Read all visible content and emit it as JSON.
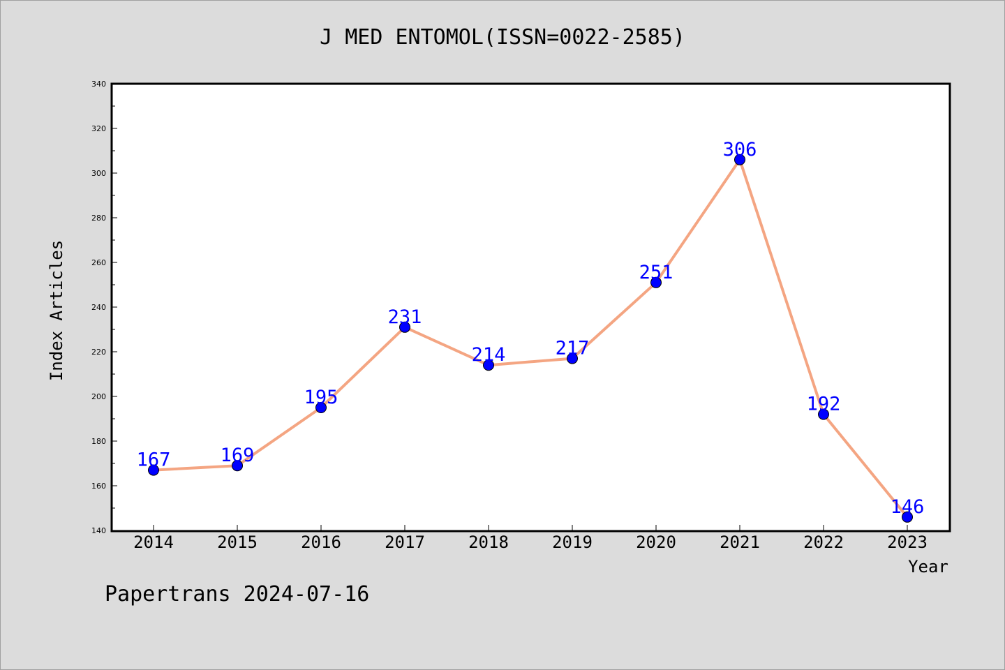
{
  "chart_data": {
    "type": "line",
    "title": "J MED ENTOMOL(ISSN=0022-2585)",
    "xlabel": "Year",
    "ylabel": "Index Articles",
    "footer": "Papertrans 2024-07-16",
    "categories": [
      "2014",
      "2015",
      "2016",
      "2017",
      "2018",
      "2019",
      "2020",
      "2021",
      "2022",
      "2023"
    ],
    "series": [
      {
        "values": [
          167,
          169,
          195,
          231,
          214,
          217,
          251,
          306,
          192,
          146
        ]
      }
    ],
    "ylim": [
      140,
      340
    ],
    "yticks": [
      140,
      160,
      180,
      200,
      220,
      240,
      260,
      280,
      300,
      320,
      340
    ],
    "grid": false,
    "colors": {
      "line": "#f4a582",
      "marker": "#0000ff",
      "label": "#0000ff"
    }
  }
}
